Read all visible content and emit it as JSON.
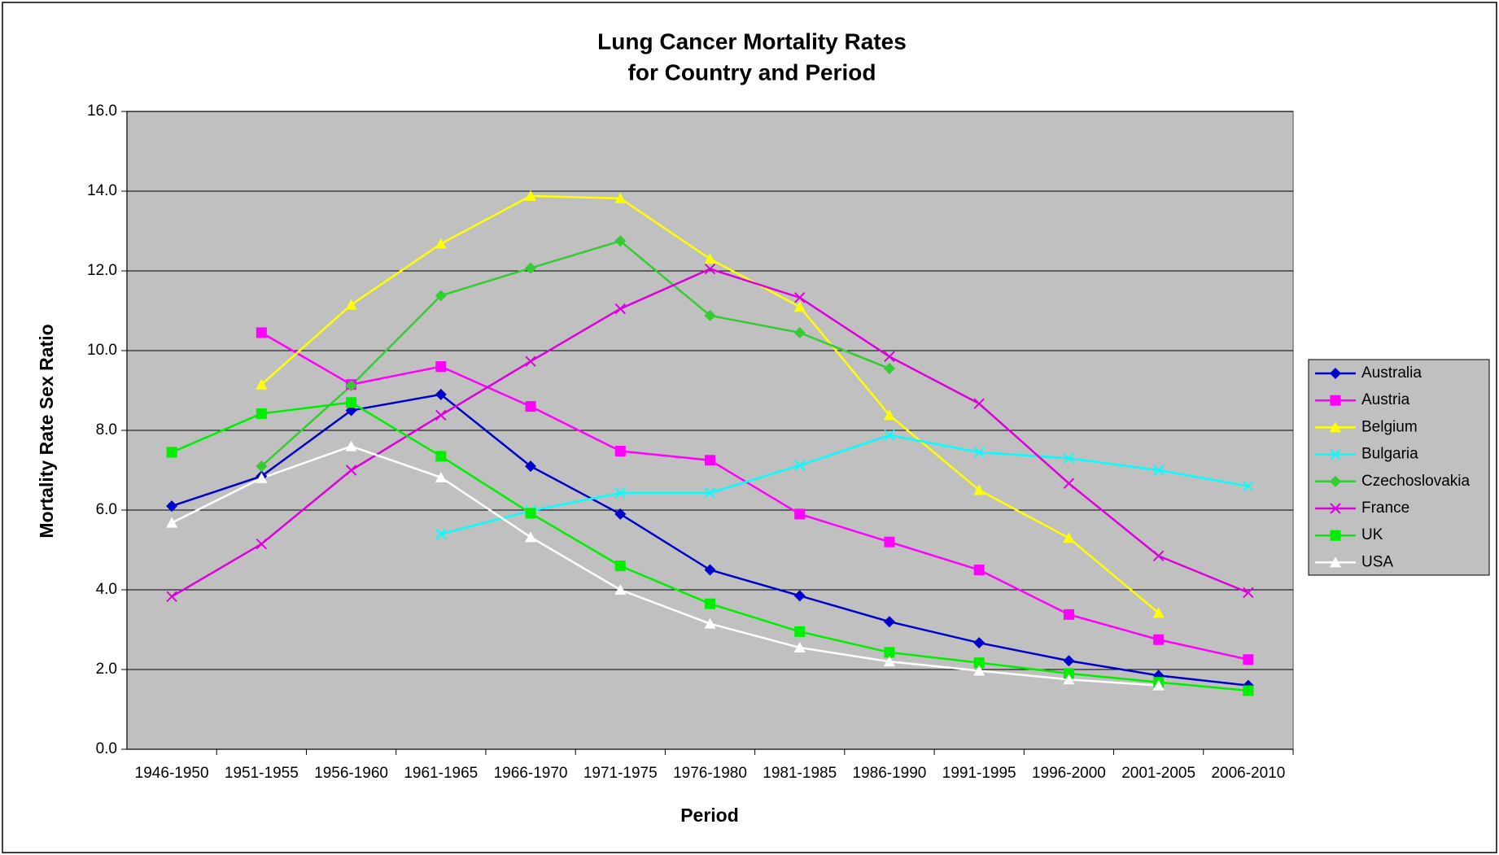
{
  "chart_data": {
    "type": "line",
    "title": [
      "Lung Cancer Mortality Rates",
      "for Country and Period"
    ],
    "x_label": "Period",
    "y_label": "Mortality Rate Sex Ratio",
    "categories": [
      "1946-1950",
      "1951-1955",
      "1956-1960",
      "1961-1965",
      "1966-1970",
      "1971-1975",
      "1976-1980",
      "1981-1985",
      "1986-1990",
      "1991-1995",
      "1996-2000",
      "2001-2005",
      "2006-2010"
    ],
    "ylim": [
      0,
      16
    ],
    "yticks": [
      {
        "value": 0,
        "label": "0.0"
      },
      {
        "value": 2,
        "label": "2.0"
      },
      {
        "value": 4,
        "label": "4.0"
      },
      {
        "value": 6,
        "label": "6.0"
      },
      {
        "value": 8,
        "label": "8.0"
      },
      {
        "value": 10,
        "label": "10.0"
      },
      {
        "value": 12,
        "label": "12.0"
      },
      {
        "value": 14,
        "label": "14.0"
      },
      {
        "value": 16,
        "label": "16.0"
      }
    ],
    "grid": true,
    "legend": "right",
    "series": [
      {
        "name": "Australia",
        "color": "#0000cc",
        "marker": "diamond",
        "values": [
          6.1,
          6.85,
          8.5,
          8.9,
          7.1,
          5.9,
          4.5,
          3.85,
          3.2,
          2.67,
          2.22,
          1.85,
          1.6
        ]
      },
      {
        "name": "Austria",
        "color": "#ff00ff",
        "marker": "square",
        "values": [
          null,
          10.45,
          9.15,
          9.6,
          8.6,
          7.48,
          7.25,
          5.9,
          5.2,
          4.5,
          3.38,
          2.75,
          2.25
        ]
      },
      {
        "name": "Belgium",
        "color": "#ffff00",
        "marker": "triangle",
        "values": [
          null,
          9.15,
          11.15,
          12.68,
          13.88,
          13.82,
          12.3,
          11.1,
          8.38,
          6.5,
          5.3,
          3.42,
          null
        ]
      },
      {
        "name": "Bulgaria",
        "color": "#00ffff",
        "marker": "x",
        "values": [
          null,
          null,
          null,
          5.4,
          5.98,
          6.43,
          6.43,
          7.12,
          7.88,
          7.45,
          7.3,
          7.0,
          6.6
        ]
      },
      {
        "name": "Czechoslovakia",
        "color": "#33cc33",
        "marker": "diamond",
        "values": [
          null,
          7.1,
          9.12,
          11.38,
          12.07,
          12.75,
          10.88,
          10.45,
          9.55,
          null,
          null,
          null,
          null
        ]
      },
      {
        "name": "France",
        "color": "#dd00dd",
        "marker": "x",
        "values": [
          3.83,
          5.15,
          7.0,
          8.38,
          9.73,
          11.05,
          12.05,
          11.33,
          9.85,
          8.67,
          6.67,
          4.85,
          3.93
        ]
      },
      {
        "name": "UK",
        "color": "#00ee00",
        "marker": "square",
        "values": [
          7.45,
          8.42,
          8.7,
          7.35,
          5.92,
          4.6,
          3.65,
          2.95,
          2.43,
          2.17,
          1.9,
          1.68,
          1.47
        ]
      },
      {
        "name": "USA",
        "color": "#ffffff",
        "marker": "triangle",
        "values": [
          5.68,
          6.8,
          7.6,
          6.82,
          5.32,
          4.0,
          3.15,
          2.55,
          2.2,
          1.97,
          1.75,
          1.6,
          null
        ]
      }
    ]
  }
}
